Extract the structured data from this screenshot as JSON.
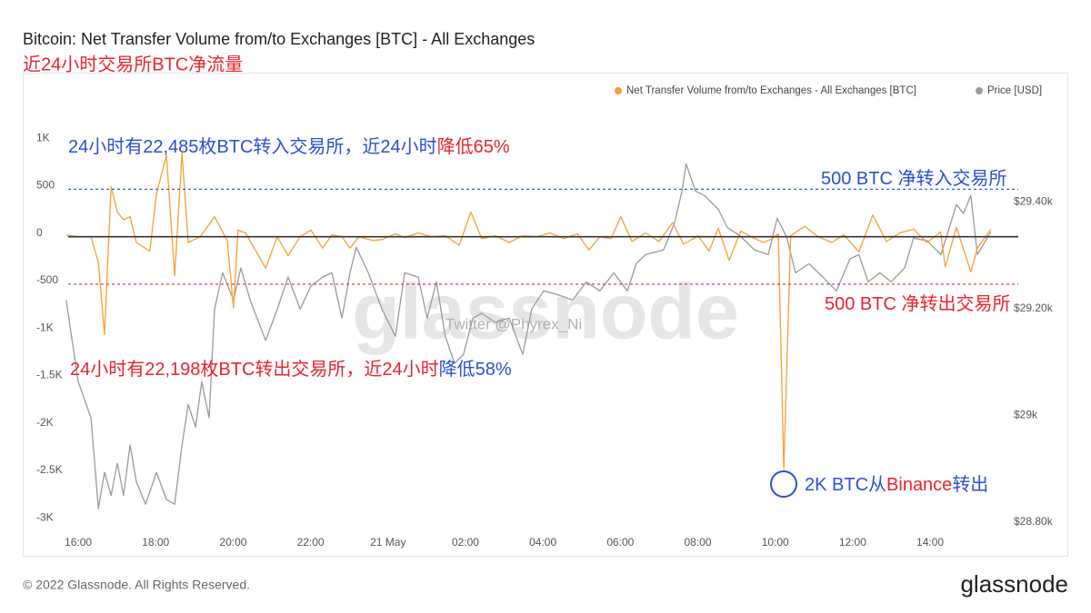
{
  "chart_data": {
    "type": "line",
    "title": "Bitcoin: Net Transfer Volume from/to Exchanges [BTC] - All Exchanges",
    "subtitle": "近24小时交易所BTC净流量",
    "xlim": [
      -0.4,
      23.9
    ],
    "xticks": [
      {
        "value": 0,
        "label": "16:00"
      },
      {
        "value": 2,
        "label": "18:00"
      },
      {
        "value": 4,
        "label": "20:00"
      },
      {
        "value": 6,
        "label": "22:00"
      },
      {
        "value": 8,
        "label": "21 May"
      },
      {
        "value": 10,
        "label": "02:00"
      },
      {
        "value": 12,
        "label": "04:00"
      },
      {
        "value": 14,
        "label": "06:00"
      },
      {
        "value": 16,
        "label": "08:00"
      },
      {
        "value": 18,
        "label": "10:00"
      },
      {
        "value": 20,
        "label": "12:00"
      },
      {
        "value": 22,
        "label": "14:00"
      }
    ],
    "ylim": [
      -3150,
      1250
    ],
    "yticks": [
      {
        "value": 1000,
        "label": "1K"
      },
      500,
      0,
      -500,
      {
        "value": -1000,
        "label": "-1K"
      },
      {
        "value": -1500,
        "label": "-1.5K"
      },
      {
        "value": -2000,
        "label": "-2K"
      },
      {
        "value": -2500,
        "label": "-2.5K"
      },
      {
        "value": -3000,
        "label": "-3K"
      }
    ],
    "y2lim": [
      28774,
      29557
    ],
    "y2ticks": [
      {
        "value": 29400,
        "label": "$29.40k"
      },
      {
        "value": 29200,
        "label": "$29.20k"
      },
      {
        "value": 29000,
        "label": "$29k"
      },
      {
        "value": 28800,
        "label": "$28.80k"
      }
    ],
    "reference_lines": [
      {
        "value": 0,
        "color": "#333333",
        "dashed": false
      },
      {
        "value": 500,
        "color": "#2b63e8",
        "dashed": true
      },
      {
        "value": -500,
        "color": "#e8242b",
        "dashed": true
      }
    ],
    "series": [
      {
        "name": "Net Transfer Volume from/to Exchanges - All Exchanges [BTC]",
        "color": "#f7a035",
        "x": [
          -0.31,
          0,
          0.33,
          0.52,
          0.68,
          0.85,
          1.01,
          1.17,
          1.34,
          1.5,
          1.85,
          2.02,
          2.28,
          2.49,
          2.68,
          2.84,
          3.15,
          3.52,
          3.85,
          4.01,
          4.13,
          4.32,
          4.84,
          5.14,
          5.42,
          5.73,
          6.01,
          6.31,
          6.55,
          6.81,
          7.02,
          7.25,
          7.61,
          7.84,
          8.19,
          8.43,
          8.78,
          9.13,
          9.48,
          9.84,
          10.14,
          10.42,
          10.77,
          11.13,
          11.48,
          11.83,
          12.18,
          12.54,
          12.89,
          13.19,
          13.47,
          13.76,
          14.01,
          14.3,
          14.65,
          15.0,
          15.35,
          15.63,
          16.01,
          16.29,
          16.53,
          16.81,
          17.11,
          17.42,
          17.7,
          17.93,
          18.08,
          18.22,
          18.4,
          18.76,
          19.11,
          19.46,
          19.77,
          20.16,
          20.52,
          20.87,
          21.22,
          21.57,
          21.92,
          22.27,
          22.39,
          22.68,
          23.05,
          23.22,
          23.57
        ],
        "values": [
          20,
          0,
          0,
          -270,
          -1030,
          530,
          260,
          180,
          210,
          -60,
          -150,
          450,
          860,
          -410,
          880,
          -60,
          0,
          210,
          -40,
          -750,
          70,
          40,
          -330,
          0,
          -200,
          0,
          70,
          -120,
          20,
          0,
          -120,
          0,
          -40,
          -30,
          30,
          -10,
          40,
          0,
          10,
          -90,
          260,
          -20,
          10,
          -60,
          10,
          0,
          40,
          -20,
          30,
          -140,
          0,
          -20,
          210,
          -50,
          40,
          -50,
          150,
          -80,
          10,
          -150,
          90,
          -250,
          60,
          -10,
          -60,
          -20,
          30,
          -2450,
          10,
          110,
          0,
          -60,
          20,
          -160,
          230,
          -50,
          40,
          80,
          -60,
          50,
          -320,
          100,
          -370,
          -120,
          80
        ]
      },
      {
        "name": "Price [USD]",
        "color": "#9a9a9a",
        "axis": "y2",
        "x": [
          -0.31,
          0,
          0.33,
          0.52,
          0.68,
          0.85,
          1.01,
          1.17,
          1.34,
          1.5,
          1.74,
          2.02,
          2.28,
          2.49,
          2.68,
          2.84,
          3.03,
          3.19,
          3.38,
          3.52,
          3.73,
          4.01,
          4.2,
          4.44,
          4.84,
          5.14,
          5.42,
          5.73,
          6.01,
          6.31,
          6.55,
          6.81,
          7.02,
          7.18,
          7.49,
          7.84,
          8.19,
          8.43,
          8.78,
          9.01,
          9.25,
          9.48,
          9.72,
          9.95,
          10.19,
          10.42,
          10.77,
          11.13,
          11.48,
          11.71,
          12.02,
          12.42,
          12.77,
          13.12,
          13.47,
          13.83,
          14.18,
          14.41,
          14.65,
          15.12,
          15.4,
          15.59,
          15.7,
          15.94,
          16.17,
          16.53,
          16.76,
          17.11,
          17.46,
          17.82,
          18.05,
          18.29,
          18.52,
          18.87,
          19.23,
          19.58,
          19.93,
          20.16,
          20.4,
          20.7,
          20.99,
          21.34,
          21.57,
          21.92,
          22.28,
          22.68,
          22.86,
          23.05,
          23.22,
          23.57
        ],
        "values": [
          29216,
          29063,
          28995,
          28825,
          28893,
          28850,
          28910,
          28850,
          28944,
          28876,
          28833,
          28893,
          28842,
          28833,
          28944,
          29020,
          28978,
          29063,
          28995,
          29199,
          29267,
          29216,
          29276,
          29216,
          29140,
          29199,
          29259,
          29199,
          29242,
          29259,
          29267,
          29182,
          29267,
          29315,
          29267,
          29199,
          29148,
          29267,
          29259,
          29182,
          29250,
          29148,
          29097,
          29114,
          29182,
          29191,
          29174,
          29182,
          29114,
          29199,
          29233,
          29225,
          29216,
          29250,
          29233,
          29267,
          29233,
          29284,
          29301,
          29310,
          29361,
          29420,
          29471,
          29420,
          29412,
          29386,
          29352,
          29335,
          29310,
          29301,
          29369,
          29335,
          29267,
          29284,
          29259,
          29233,
          29293,
          29301,
          29250,
          29267,
          29250,
          29276,
          29332,
          29327,
          29301,
          29395,
          29378,
          29412,
          29301,
          29344
        ]
      }
    ],
    "annotations": [
      {
        "parts": [
          {
            "text": "24小时有22,485枚BTC转入交易所，近24小时",
            "color": "#2b4fd8"
          },
          {
            "text": "降低65%",
            "color": "#e8242b"
          }
        ]
      },
      {
        "parts": [
          {
            "text": "24小时有22,198枚BTC转出交易所，近24小时",
            "color": "#e8242b"
          },
          {
            "text": "降低58%",
            "color": "#2b4fd8"
          }
        ]
      },
      {
        "parts": [
          {
            "text": "500 BTC 净转入交易所",
            "color": "#2b4fd8"
          }
        ]
      },
      {
        "parts": [
          {
            "text": "500 BTC 净转出交易所",
            "color": "#e8242b"
          }
        ]
      },
      {
        "parts": [
          {
            "text": "2K BTC从",
            "color": "#2b4fd8"
          },
          {
            "text": "Binance",
            "color": "#e8242b"
          },
          {
            "text": "转出",
            "color": "#2b4fd8"
          }
        ]
      }
    ],
    "watermarks": [
      "glassnode",
      "Twitter @Phyrex_Ni"
    ],
    "copyright": "© 2022 Glassnode. All Rights Reserved.",
    "logo": "glassnode"
  }
}
